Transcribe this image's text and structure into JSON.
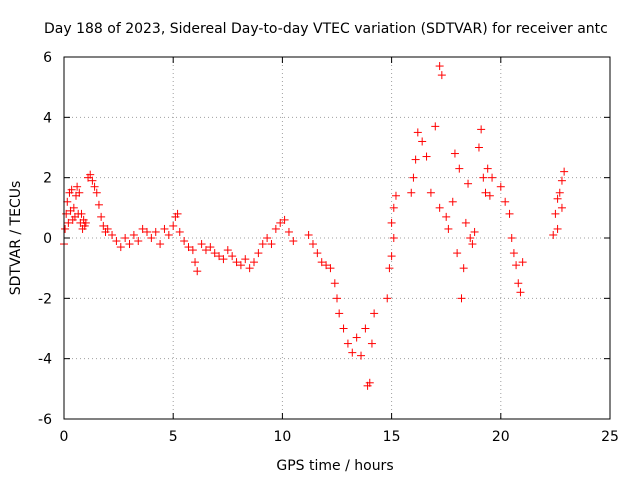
{
  "chart_data": {
    "type": "scatter",
    "title": "Day 188 of 2023, Sidereal Day-to-day VTEC variation (SDTVAR) for receiver antc",
    "xlabel": "GPS time / hours",
    "ylabel": "SDTVAR / TECUs",
    "xlim": [
      0,
      25
    ],
    "ylim": [
      -6,
      6
    ],
    "x_ticks": [
      0,
      5,
      10,
      15,
      20,
      25
    ],
    "y_ticks": [
      -6,
      -4,
      -2,
      0,
      2,
      4,
      6
    ],
    "grid": true,
    "marker": "+",
    "marker_color": "#ff0000",
    "series": [
      {
        "name": "SDTVAR",
        "points": [
          [
            0.0,
            -0.2
          ],
          [
            0.05,
            0.3
          ],
          [
            0.1,
            0.8
          ],
          [
            0.15,
            1.2
          ],
          [
            0.2,
            0.5
          ],
          [
            0.25,
            1.5
          ],
          [
            0.3,
            0.9
          ],
          [
            0.35,
            1.6
          ],
          [
            0.4,
            0.6
          ],
          [
            0.45,
            1.0
          ],
          [
            0.5,
            0.7
          ],
          [
            0.55,
            1.4
          ],
          [
            0.6,
            1.7
          ],
          [
            0.65,
            0.8
          ],
          [
            0.7,
            1.5
          ],
          [
            0.75,
            0.5
          ],
          [
            0.8,
            0.8
          ],
          [
            0.85,
            0.3
          ],
          [
            0.9,
            0.6
          ],
          [
            0.95,
            0.4
          ],
          [
            1.0,
            0.5
          ],
          [
            1.1,
            2.0
          ],
          [
            1.2,
            2.1
          ],
          [
            1.3,
            1.9
          ],
          [
            1.4,
            1.7
          ],
          [
            1.5,
            1.5
          ],
          [
            1.6,
            1.1
          ],
          [
            1.7,
            0.7
          ],
          [
            1.8,
            0.4
          ],
          [
            1.9,
            0.2
          ],
          [
            2.0,
            0.3
          ],
          [
            2.2,
            0.1
          ],
          [
            2.4,
            -0.1
          ],
          [
            2.6,
            -0.3
          ],
          [
            2.8,
            0.0
          ],
          [
            3.0,
            -0.2
          ],
          [
            3.2,
            0.1
          ],
          [
            3.4,
            -0.1
          ],
          [
            3.6,
            0.3
          ],
          [
            3.8,
            0.2
          ],
          [
            4.0,
            0.0
          ],
          [
            4.2,
            0.2
          ],
          [
            4.4,
            -0.2
          ],
          [
            4.6,
            0.3
          ],
          [
            4.8,
            0.1
          ],
          [
            5.0,
            0.4
          ],
          [
            5.1,
            0.7
          ],
          [
            5.2,
            0.8
          ],
          [
            5.3,
            0.2
          ],
          [
            5.5,
            -0.1
          ],
          [
            5.7,
            -0.3
          ],
          [
            5.9,
            -0.4
          ],
          [
            6.0,
            -0.8
          ],
          [
            6.1,
            -1.1
          ],
          [
            6.3,
            -0.2
          ],
          [
            6.5,
            -0.4
          ],
          [
            6.7,
            -0.3
          ],
          [
            6.9,
            -0.5
          ],
          [
            7.1,
            -0.6
          ],
          [
            7.3,
            -0.7
          ],
          [
            7.5,
            -0.4
          ],
          [
            7.7,
            -0.6
          ],
          [
            7.9,
            -0.8
          ],
          [
            8.1,
            -0.9
          ],
          [
            8.3,
            -0.7
          ],
          [
            8.5,
            -1.0
          ],
          [
            8.7,
            -0.8
          ],
          [
            8.9,
            -0.5
          ],
          [
            9.1,
            -0.2
          ],
          [
            9.3,
            0.0
          ],
          [
            9.5,
            -0.2
          ],
          [
            9.7,
            0.3
          ],
          [
            9.9,
            0.5
          ],
          [
            10.1,
            0.6
          ],
          [
            10.3,
            0.2
          ],
          [
            10.5,
            -0.1
          ],
          [
            11.2,
            0.1
          ],
          [
            11.4,
            -0.2
          ],
          [
            11.6,
            -0.5
          ],
          [
            11.8,
            -0.8
          ],
          [
            12.0,
            -0.9
          ],
          [
            12.2,
            -1.0
          ],
          [
            12.4,
            -1.5
          ],
          [
            12.5,
            -2.0
          ],
          [
            12.6,
            -2.5
          ],
          [
            12.8,
            -3.0
          ],
          [
            13.0,
            -3.5
          ],
          [
            13.2,
            -3.8
          ],
          [
            13.4,
            -3.3
          ],
          [
            13.6,
            -3.9
          ],
          [
            13.8,
            -3.0
          ],
          [
            13.9,
            -4.9
          ],
          [
            14.0,
            -4.8
          ],
          [
            14.1,
            -3.5
          ],
          [
            14.2,
            -2.5
          ],
          [
            14.8,
            -2.0
          ],
          [
            14.9,
            -1.0
          ],
          [
            15.0,
            0.5
          ],
          [
            15.1,
            1.0
          ],
          [
            15.2,
            1.4
          ],
          [
            15.1,
            0.0
          ],
          [
            15.0,
            -0.6
          ],
          [
            15.9,
            1.5
          ],
          [
            16.0,
            2.0
          ],
          [
            16.1,
            2.6
          ],
          [
            16.2,
            3.5
          ],
          [
            16.4,
            3.2
          ],
          [
            16.6,
            2.7
          ],
          [
            16.8,
            1.5
          ],
          [
            17.0,
            3.7
          ],
          [
            17.2,
            1.0
          ],
          [
            17.2,
            5.7
          ],
          [
            17.3,
            5.4
          ],
          [
            17.5,
            0.7
          ],
          [
            17.6,
            0.3
          ],
          [
            17.8,
            1.2
          ],
          [
            17.9,
            2.8
          ],
          [
            18.0,
            -0.5
          ],
          [
            18.1,
            2.3
          ],
          [
            18.2,
            -2.0
          ],
          [
            18.3,
            -1.0
          ],
          [
            18.4,
            0.5
          ],
          [
            18.5,
            1.8
          ],
          [
            18.6,
            0.0
          ],
          [
            18.7,
            -0.2
          ],
          [
            18.8,
            0.2
          ],
          [
            19.0,
            3.0
          ],
          [
            19.1,
            3.6
          ],
          [
            19.2,
            2.0
          ],
          [
            19.3,
            1.5
          ],
          [
            19.4,
            2.3
          ],
          [
            19.5,
            1.4
          ],
          [
            19.6,
            2.0
          ],
          [
            20.0,
            1.7
          ],
          [
            20.2,
            1.2
          ],
          [
            20.4,
            0.8
          ],
          [
            20.5,
            0.0
          ],
          [
            20.6,
            -0.5
          ],
          [
            20.7,
            -0.9
          ],
          [
            20.8,
            -1.5
          ],
          [
            20.9,
            -1.8
          ],
          [
            21.0,
            -0.8
          ],
          [
            22.4,
            0.1
          ],
          [
            22.5,
            0.8
          ],
          [
            22.6,
            1.3
          ],
          [
            22.7,
            1.5
          ],
          [
            22.8,
            1.9
          ],
          [
            22.9,
            2.2
          ],
          [
            22.6,
            0.3
          ],
          [
            22.8,
            1.0
          ]
        ]
      }
    ]
  }
}
